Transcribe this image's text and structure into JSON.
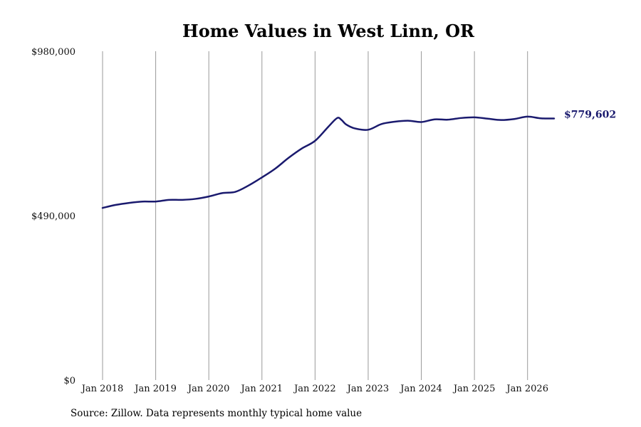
{
  "source_note": "Source: Zillow. Data represents monthly typical home value",
  "chart_data": {
    "type": "line",
    "title": "Home Values in West Linn, OR",
    "xlabel": "",
    "ylabel": "",
    "ylim": [
      0,
      980000
    ],
    "y_ticks": [
      {
        "value": 0,
        "label": "$0"
      },
      {
        "value": 490000,
        "label": "$490,000"
      },
      {
        "value": 980000,
        "label": "$980,000"
      }
    ],
    "x_range": [
      "2018-01",
      "2026-07"
    ],
    "x_ticks": [
      {
        "date": "2018-01",
        "label": "Jan 2018"
      },
      {
        "date": "2019-01",
        "label": "Jan 2019"
      },
      {
        "date": "2020-01",
        "label": "Jan 2020"
      },
      {
        "date": "2021-01",
        "label": "Jan 2021"
      },
      {
        "date": "2022-01",
        "label": "Jan 2022"
      },
      {
        "date": "2023-01",
        "label": "Jan 2023"
      },
      {
        "date": "2024-01",
        "label": "Jan 2024"
      },
      {
        "date": "2025-01",
        "label": "Jan 2025"
      },
      {
        "date": "2026-01",
        "label": "Jan 2026"
      }
    ],
    "vertical_gridlines": true,
    "line_color": "#1a1a6e",
    "gridline_color": "#999999",
    "end_label": "$779,602",
    "series": [
      {
        "points": [
          {
            "x": "2018-01",
            "y": 513000
          },
          {
            "x": "2018-04",
            "y": 522000
          },
          {
            "x": "2018-07",
            "y": 528000
          },
          {
            "x": "2018-10",
            "y": 532000
          },
          {
            "x": "2019-01",
            "y": 532000
          },
          {
            "x": "2019-04",
            "y": 537000
          },
          {
            "x": "2019-07",
            "y": 537000
          },
          {
            "x": "2019-10",
            "y": 540000
          },
          {
            "x": "2020-01",
            "y": 547000
          },
          {
            "x": "2020-04",
            "y": 557000
          },
          {
            "x": "2020-07",
            "y": 561000
          },
          {
            "x": "2020-10",
            "y": 580000
          },
          {
            "x": "2021-01",
            "y": 604000
          },
          {
            "x": "2021-04",
            "y": 630000
          },
          {
            "x": "2021-07",
            "y": 662000
          },
          {
            "x": "2021-10",
            "y": 690000
          },
          {
            "x": "2022-01",
            "y": 713000
          },
          {
            "x": "2022-04",
            "y": 755000
          },
          {
            "x": "2022-06",
            "y": 781000
          },
          {
            "x": "2022-07",
            "y": 775000
          },
          {
            "x": "2022-08",
            "y": 762000
          },
          {
            "x": "2022-10",
            "y": 750000
          },
          {
            "x": "2023-01",
            "y": 746000
          },
          {
            "x": "2023-04",
            "y": 763000
          },
          {
            "x": "2023-07",
            "y": 770000
          },
          {
            "x": "2023-10",
            "y": 773000
          },
          {
            "x": "2024-01",
            "y": 769000
          },
          {
            "x": "2024-04",
            "y": 777000
          },
          {
            "x": "2024-07",
            "y": 776000
          },
          {
            "x": "2024-10",
            "y": 781000
          },
          {
            "x": "2025-01",
            "y": 783000
          },
          {
            "x": "2025-04",
            "y": 779000
          },
          {
            "x": "2025-07",
            "y": 775000
          },
          {
            "x": "2025-10",
            "y": 778000
          },
          {
            "x": "2026-01",
            "y": 785000
          },
          {
            "x": "2026-04",
            "y": 780000
          },
          {
            "x": "2026-07",
            "y": 779602
          }
        ]
      }
    ]
  }
}
